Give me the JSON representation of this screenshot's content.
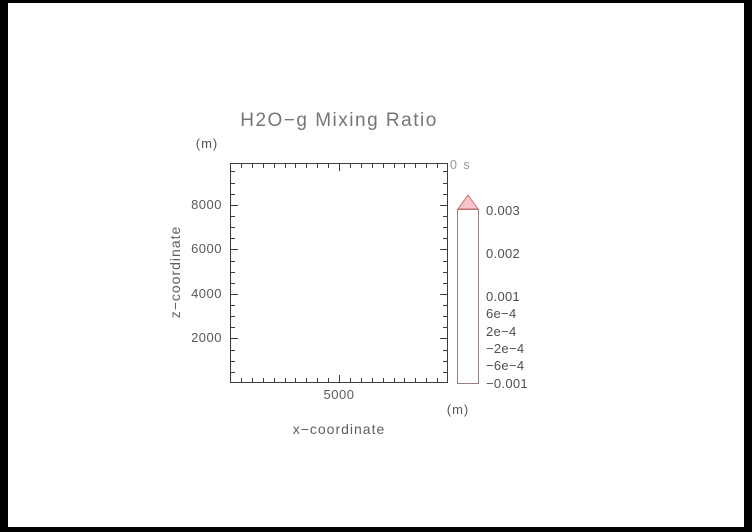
{
  "page": {
    "background_color": "#ffffff",
    "border_color": "#000000"
  },
  "header": {
    "title": "H2O−g Mixing Ratio",
    "timestamp": "0 s"
  },
  "chart_data": {
    "type": "heatmap",
    "title": "H2O−g Mixing Ratio",
    "timestamp": "0 s",
    "xlabel": "x−coordinate",
    "ylabel": "z−coordinate",
    "x_axis_unit": "(m)",
    "y_axis_unit": "(m)",
    "xlim": [
      0,
      10000
    ],
    "ylim": [
      0,
      9880
    ],
    "minor_tick_interval": 500,
    "x_major_ticks": [
      {
        "value": 5000,
        "label": "5000"
      }
    ],
    "y_major_ticks": [
      {
        "value": 2000,
        "label": "2000"
      },
      {
        "value": 4000,
        "label": "4000"
      },
      {
        "value": 6000,
        "label": "6000"
      },
      {
        "value": 8000,
        "label": "8000"
      }
    ],
    "grid": false,
    "plot_area_empty": true,
    "plot_area_note": "no filled contours visible at time 0 s (uniform field)",
    "legend_position": "right",
    "colorbar": {
      "levels_bottom_to_top": [
        -0.001,
        -0.0008,
        -0.0006,
        -0.0004,
        -0.0002,
        0,
        0.0002,
        0.0004,
        0.0006,
        0.0008,
        0.001,
        0.0015,
        0.002,
        0.0025,
        0.003
      ],
      "segment_colors_bottom_to_top": [
        "#8a12b2",
        "#2f0f9f",
        "#1c2ed6",
        "#2565f0",
        "#38b6ee",
        "#0edc96",
        "#9be52c",
        "#fdf122",
        "#fdab1e",
        "#fd8d13",
        "#fb7310",
        "#ee1b1e",
        "#f2797d",
        "#f8c6c8"
      ],
      "tick_labels": [
        {
          "label": "0.003",
          "value": 0.003
        },
        {
          "label": "0.002",
          "value": 0.002
        },
        {
          "label": "0.001",
          "value": 0.001
        },
        {
          "label": "6e−4",
          "value": 0.0006
        },
        {
          "label": "2e−4",
          "value": 0.0002
        },
        {
          "label": "−2e−4",
          "value": -0.0002
        },
        {
          "label": "−6e−4",
          "value": -0.0006
        },
        {
          "label": "−0.001",
          "value": -0.001
        }
      ],
      "overflow_arrow_color": "#f8c6c8",
      "overflow_arrow_stroke": "#d06e72",
      "stripe_pattern": "thin horizontal scanline fill"
    }
  }
}
